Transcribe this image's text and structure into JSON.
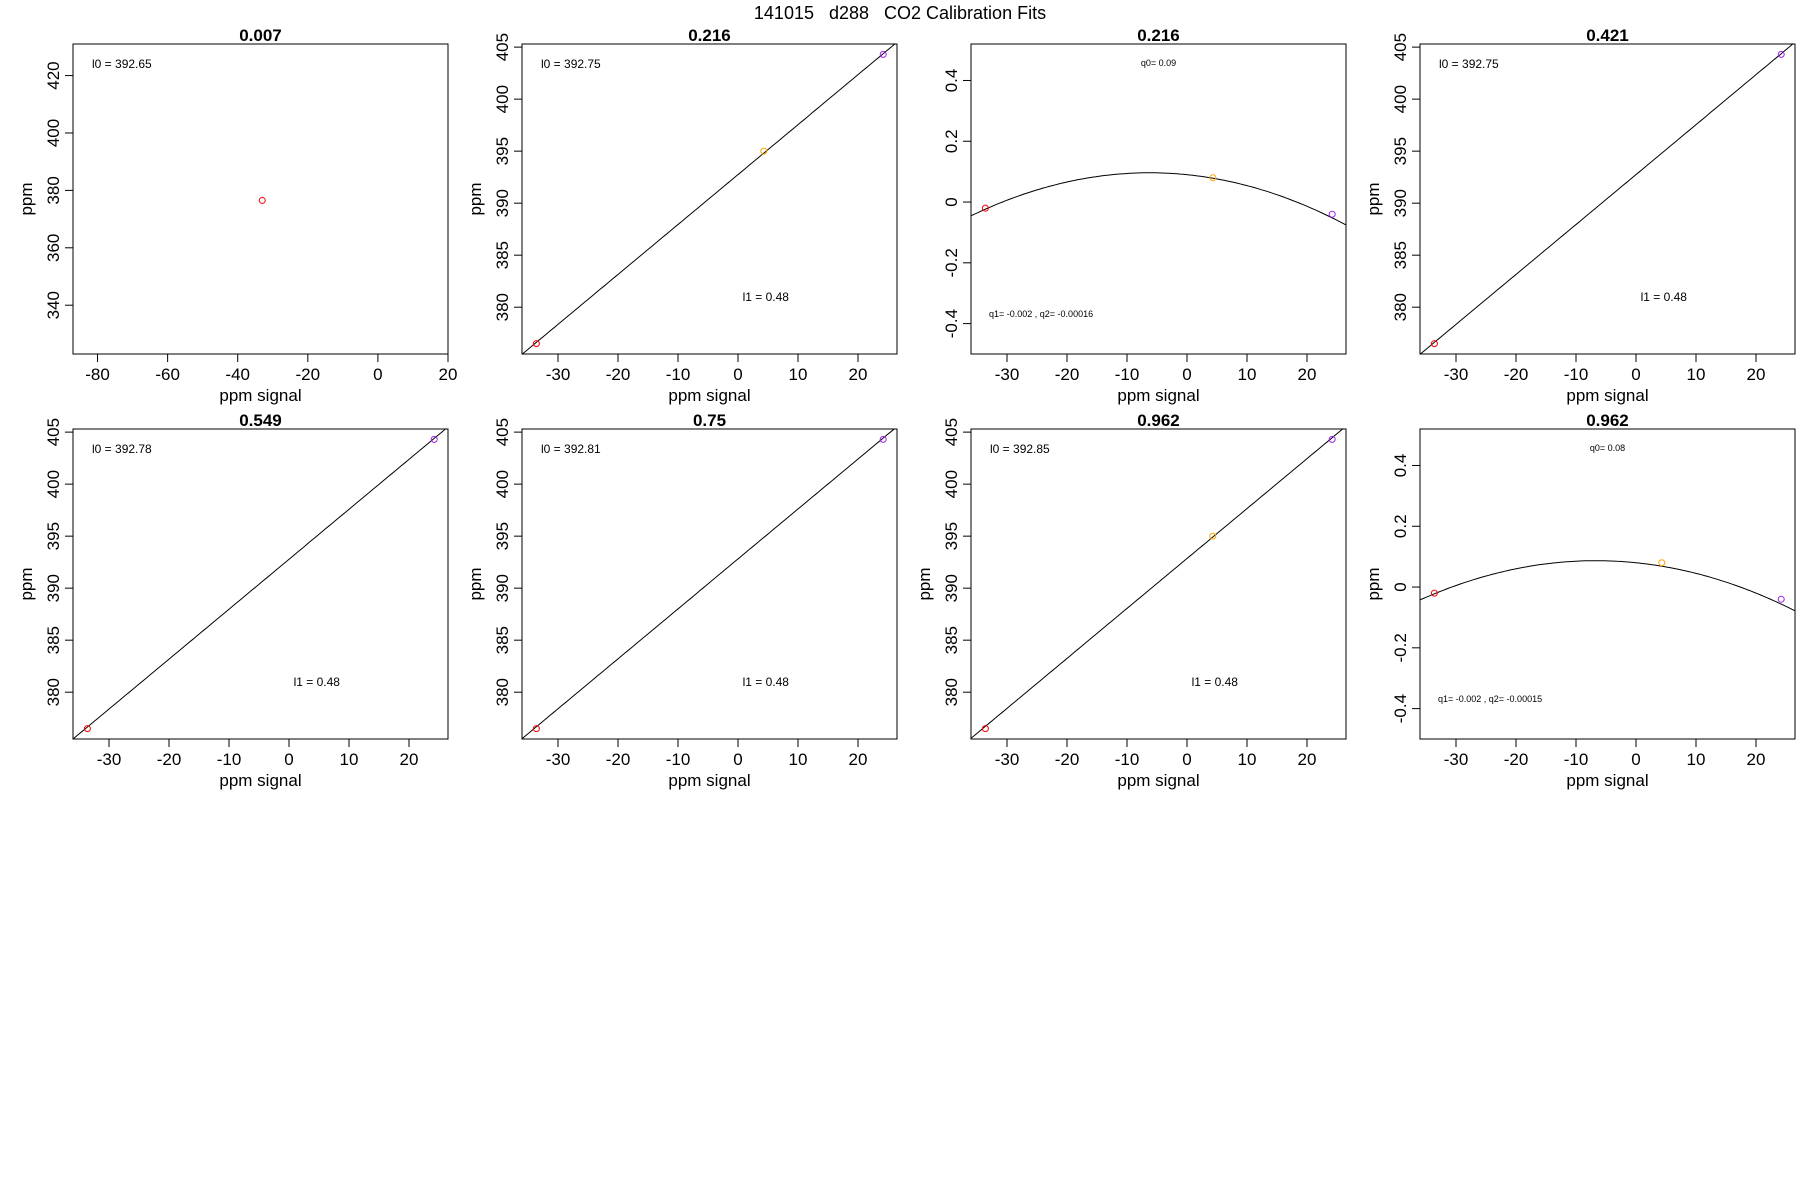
{
  "figure": {
    "title": "141015   d288   CO2 Calibration Fits"
  },
  "colors": {
    "red": "#ff0000",
    "orange": "#ffa500",
    "purple": "#a020f0",
    "line": "#000000"
  },
  "chart_data": [
    {
      "type": "scatter",
      "title": "0.007",
      "xlabel": "ppm signal",
      "ylabel": "ppm",
      "xlim": [
        -87,
        20
      ],
      "ylim": [
        323,
        431
      ],
      "xticks": [
        -80,
        -60,
        -40,
        -20,
        0,
        20
      ],
      "yticks": [
        340,
        360,
        380,
        400,
        420
      ],
      "points": [
        {
          "x": -33,
          "y": 376.5,
          "color": "red"
        }
      ],
      "fit": null,
      "annotations": [
        {
          "text": "l0 =  392.65",
          "pos": "top-left"
        }
      ]
    },
    {
      "type": "scatter",
      "title": "0.216",
      "xlabel": "ppm signal",
      "ylabel": "ppm",
      "xlim": [
        -36,
        26.5
      ],
      "ylim": [
        375.5,
        405.3
      ],
      "xticks": [
        -30,
        -20,
        -10,
        0,
        10,
        20
      ],
      "yticks": [
        380,
        385,
        390,
        395,
        400,
        405
      ],
      "points": [
        {
          "x": -33.6,
          "y": 376.5,
          "color": "red"
        },
        {
          "x": 4.3,
          "y": 395,
          "color": "orange"
        },
        {
          "x": 24.2,
          "y": 404.3,
          "color": "purple"
        }
      ],
      "fit": {
        "kind": "linear",
        "l0": 392.75,
        "l1": 0.48
      },
      "annotations": [
        {
          "text": "l0 =  392.75",
          "pos": "top-left"
        },
        {
          "text": "l1 =  0.48",
          "pos": "lower-center"
        }
      ]
    },
    {
      "type": "scatter",
      "title": "0.216",
      "xlabel": "ppm signal",
      "ylabel": "",
      "xlim": [
        -36,
        26.5
      ],
      "ylim": [
        -0.5,
        0.52
      ],
      "xticks": [
        -30,
        -20,
        -10,
        0,
        10,
        20
      ],
      "yticks": [
        -0.4,
        -0.2,
        0.0,
        0.2,
        0.4
      ],
      "points": [
        {
          "x": -33.6,
          "y": -0.02,
          "color": "red"
        },
        {
          "x": 4.3,
          "y": 0.08,
          "color": "orange"
        },
        {
          "x": 24.2,
          "y": -0.04,
          "color": "purple"
        }
      ],
      "fit": {
        "kind": "quadratic",
        "q0": 0.09,
        "q1": -0.002,
        "q2": -0.00016
      },
      "annotations": [
        {
          "text": "q0= 0.09",
          "pos": "top-center"
        },
        {
          "text": "q1= -0.002 , q2= -0.00016",
          "pos": "bottom-left"
        }
      ]
    },
    {
      "type": "scatter",
      "title": "0.421",
      "xlabel": "ppm signal",
      "ylabel": "ppm",
      "xlim": [
        -36,
        26.5
      ],
      "ylim": [
        375.5,
        405.3
      ],
      "xticks": [
        -30,
        -20,
        -10,
        0,
        10,
        20
      ],
      "yticks": [
        380,
        385,
        390,
        395,
        400,
        405
      ],
      "points": [
        {
          "x": -33.6,
          "y": 376.5,
          "color": "red"
        },
        {
          "x": 24.2,
          "y": 404.3,
          "color": "purple"
        }
      ],
      "fit": {
        "kind": "linear",
        "l0": 392.75,
        "l1": 0.48
      },
      "annotations": [
        {
          "text": "l0 =  392.75",
          "pos": "top-left"
        },
        {
          "text": "l1 =  0.48",
          "pos": "lower-center"
        }
      ]
    },
    {
      "type": "scatter",
      "title": "0.549",
      "xlabel": "ppm signal",
      "ylabel": "ppm",
      "xlim": [
        -36,
        26.5
      ],
      "ylim": [
        375.5,
        405.3
      ],
      "xticks": [
        -30,
        -20,
        -10,
        0,
        10,
        20
      ],
      "yticks": [
        380,
        385,
        390,
        395,
        400,
        405
      ],
      "points": [
        {
          "x": -33.6,
          "y": 376.5,
          "color": "red"
        },
        {
          "x": 24.2,
          "y": 404.3,
          "color": "purple"
        }
      ],
      "fit": {
        "kind": "linear",
        "l0": 392.78,
        "l1": 0.48
      },
      "annotations": [
        {
          "text": "l0 =  392.78",
          "pos": "top-left"
        },
        {
          "text": "l1 =  0.48",
          "pos": "lower-center"
        }
      ]
    },
    {
      "type": "scatter",
      "title": "0.75",
      "xlabel": "ppm signal",
      "ylabel": "ppm",
      "xlim": [
        -36,
        26.5
      ],
      "ylim": [
        375.5,
        405.3
      ],
      "xticks": [
        -30,
        -20,
        -10,
        0,
        10,
        20
      ],
      "yticks": [
        380,
        385,
        390,
        395,
        400,
        405
      ],
      "points": [
        {
          "x": -33.6,
          "y": 376.5,
          "color": "red"
        },
        {
          "x": 24.2,
          "y": 404.3,
          "color": "purple"
        }
      ],
      "fit": {
        "kind": "linear",
        "l0": 392.81,
        "l1": 0.48
      },
      "annotations": [
        {
          "text": "l0 =  392.81",
          "pos": "top-left"
        },
        {
          "text": "l1 =  0.48",
          "pos": "lower-center"
        }
      ]
    },
    {
      "type": "scatter",
      "title": "0.962",
      "xlabel": "ppm signal",
      "ylabel": "ppm",
      "xlim": [
        -36,
        26.5
      ],
      "ylim": [
        375.5,
        405.3
      ],
      "xticks": [
        -30,
        -20,
        -10,
        0,
        10,
        20
      ],
      "yticks": [
        380,
        385,
        390,
        395,
        400,
        405
      ],
      "points": [
        {
          "x": -33.6,
          "y": 376.5,
          "color": "red"
        },
        {
          "x": 4.3,
          "y": 395,
          "color": "orange"
        },
        {
          "x": 24.2,
          "y": 404.3,
          "color": "purple"
        }
      ],
      "fit": {
        "kind": "linear",
        "l0": 392.85,
        "l1": 0.48
      },
      "annotations": [
        {
          "text": "l0 =  392.85",
          "pos": "top-left"
        },
        {
          "text": "l1 =  0.48",
          "pos": "lower-center"
        }
      ]
    },
    {
      "type": "scatter",
      "title": "0.962",
      "xlabel": "ppm signal",
      "ylabel": "ppm",
      "xlim": [
        -36,
        26.5
      ],
      "ylim": [
        -0.5,
        0.52
      ],
      "xticks": [
        -30,
        -20,
        -10,
        0,
        10,
        20
      ],
      "yticks": [
        -0.4,
        -0.2,
        0.0,
        0.2,
        0.4
      ],
      "points": [
        {
          "x": -33.6,
          "y": -0.02,
          "color": "red"
        },
        {
          "x": 4.3,
          "y": 0.08,
          "color": "orange"
        },
        {
          "x": 24.2,
          "y": -0.04,
          "color": "purple"
        }
      ],
      "fit": {
        "kind": "quadratic",
        "q0": 0.08,
        "q1": -0.002,
        "q2": -0.00015
      },
      "annotations": [
        {
          "text": "q0= 0.08",
          "pos": "top-center"
        },
        {
          "text": "q1= -0.002 , q2= -0.00015",
          "pos": "bottom-left"
        }
      ]
    }
  ]
}
